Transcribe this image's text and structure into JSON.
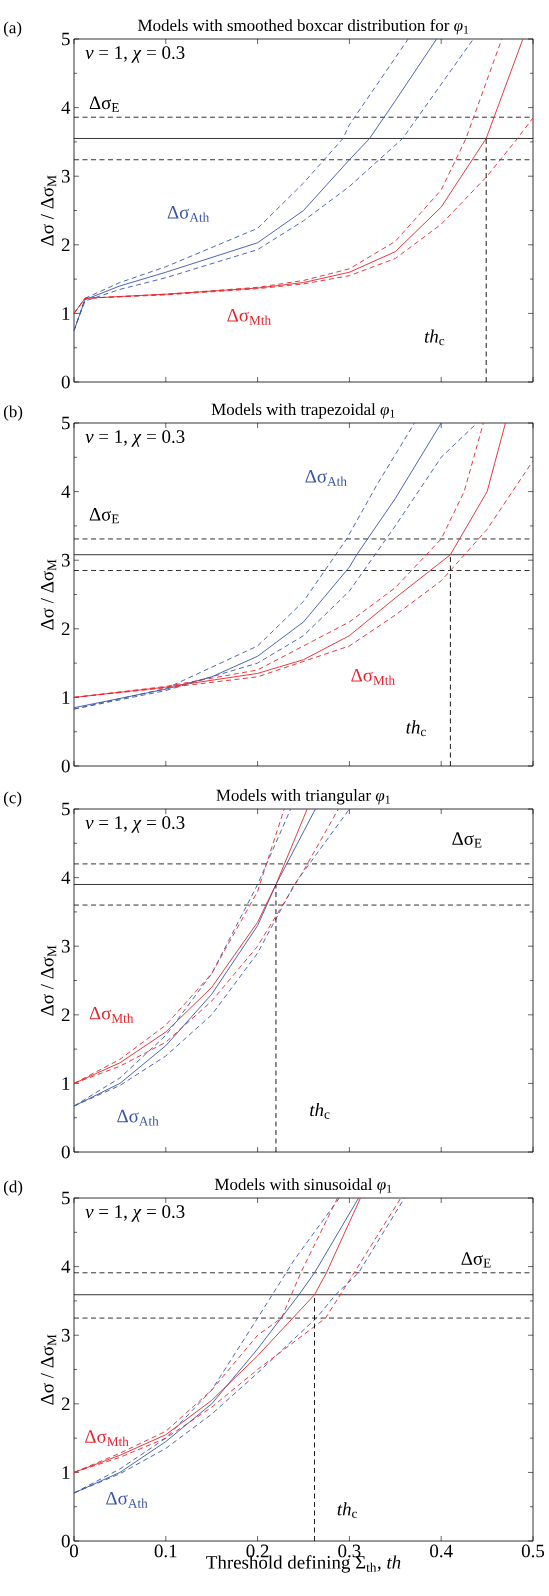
{
  "chart_data": [
    {
      "type": "line",
      "title": "Models with smoothed boxcar distribution for *φ*$_{1}$",
      "ylabel": "Δσ / Δσ$_{M}$",
      "xlim": [
        0,
        0.5
      ],
      "ylim": [
        0,
        5
      ],
      "xticks": [
        0,
        0.1,
        0.2,
        0.3,
        0.4,
        0.5
      ],
      "yticks": [
        0,
        1,
        2,
        3,
        4,
        5
      ],
      "tick_labels": "y",
      "series": [
        {
          "type": "line",
          "color": "#3a55a8",
          "line_style": "solid",
          "x": [
            0,
            0.012,
            0.05,
            0.1,
            0.2,
            0.25,
            0.3,
            0.322,
            0.35,
            0.395
          ],
          "values": [
            0.75,
            1.2,
            1.4,
            1.6,
            2.03,
            2.5,
            3.24,
            3.55,
            4.1,
            5
          ]
        },
        {
          "type": "line",
          "color": "#3a55a8",
          "line_style": "dashed",
          "x": [
            0,
            0.012,
            0.05,
            0.1,
            0.2,
            0.25,
            0.293,
            0.3,
            0.364
          ],
          "values": [
            0.75,
            1.22,
            1.45,
            1.68,
            2.24,
            2.9,
            3.55,
            3.75,
            5
          ]
        },
        {
          "type": "line",
          "color": "#3a55a8",
          "line_style": "dashed",
          "x": [
            0,
            0.012,
            0.05,
            0.1,
            0.2,
            0.25,
            0.3,
            0.358,
            0.435
          ],
          "values": [
            0.75,
            1.18,
            1.35,
            1.52,
            1.93,
            2.35,
            2.85,
            3.55,
            5
          ]
        },
        {
          "type": "line",
          "color": "#e8242c",
          "line_style": "solid",
          "x": [
            0,
            0.012,
            0.1,
            0.2,
            0.25,
            0.3,
            0.35,
            0.4,
            0.449,
            0.489
          ],
          "values": [
            1.0,
            1.22,
            1.28,
            1.37,
            1.45,
            1.6,
            1.9,
            2.55,
            3.55,
            5
          ]
        },
        {
          "type": "line",
          "color": "#e8242c",
          "line_style": "dashed",
          "x": [
            0,
            0.012,
            0.1,
            0.2,
            0.25,
            0.3,
            0.35,
            0.4,
            0.427,
            0.466
          ],
          "values": [
            1.0,
            1.22,
            1.28,
            1.38,
            1.48,
            1.65,
            2.05,
            2.8,
            3.55,
            5
          ]
        },
        {
          "type": "line",
          "color": "#e8242c",
          "line_style": "dashed",
          "x": [
            0,
            0.012,
            0.1,
            0.2,
            0.25,
            0.3,
            0.35,
            0.4,
            0.45,
            0.483,
            0.5
          ],
          "values": [
            1.0,
            1.22,
            1.27,
            1.36,
            1.43,
            1.55,
            1.8,
            2.3,
            3.0,
            3.55,
            3.85
          ]
        },
        {
          "type": "line",
          "color": "#000000",
          "line_style": "dashed",
          "x": [
            0.449,
            0.449
          ],
          "values": [
            0,
            3.55
          ]
        }
      ],
      "ref_lines": [
        {
          "axis": "y",
          "value": 3.55,
          "color": "#000000",
          "line_style": "solid"
        },
        {
          "axis": "y",
          "value": 3.86,
          "color": "#000000",
          "line_style": "dashed"
        },
        {
          "axis": "y",
          "value": 3.24,
          "color": "#000000",
          "line_style": "dashed"
        }
      ],
      "annotations": [
        "(a)",
        "*ν* = 1, *χ* = 0.3",
        "Δσ$_{E}$",
        "Δσ$_{Ath}$",
        "Δσ$_{Mth}$",
        "*th*$_{c}$"
      ]
    },
    {
      "type": "line",
      "title": "Models with trapezoidal *φ*$_{1}$",
      "ylabel": "Δσ / Δσ$_{M}$",
      "xlim": [
        0,
        0.5
      ],
      "ylim": [
        0,
        5
      ],
      "xticks": [
        0,
        0.1,
        0.2,
        0.3,
        0.4,
        0.5
      ],
      "yticks": [
        0,
        1,
        2,
        3,
        4,
        5
      ],
      "tick_labels": "y",
      "series": [
        {
          "type": "line",
          "color": "#3a55a8",
          "line_style": "solid",
          "x": [
            0,
            0.1,
            0.15,
            0.2,
            0.25,
            0.3,
            0.308,
            0.35,
            0.4
          ],
          "values": [
            0.85,
            1.12,
            1.3,
            1.6,
            2.1,
            2.9,
            3.08,
            3.9,
            5
          ]
        },
        {
          "type": "line",
          "color": "#3a55a8",
          "line_style": "dashed",
          "x": [
            0,
            0.1,
            0.2,
            0.25,
            0.297,
            0.33,
            0.371
          ],
          "values": [
            0.83,
            1.13,
            1.75,
            2.4,
            3.31,
            4.1,
            5
          ]
        },
        {
          "type": "line",
          "color": "#3a55a8",
          "line_style": "dashed",
          "x": [
            0,
            0.1,
            0.2,
            0.25,
            0.3,
            0.35,
            0.4,
            0.439
          ],
          "values": [
            0.83,
            1.1,
            1.5,
            1.9,
            2.55,
            3.5,
            4.5,
            5
          ]
        },
        {
          "type": "line",
          "color": "#e8242c",
          "line_style": "solid",
          "x": [
            0,
            0.1,
            0.2,
            0.25,
            0.3,
            0.35,
            0.41,
            0.45,
            0.47
          ],
          "values": [
            1.0,
            1.15,
            1.35,
            1.55,
            1.9,
            2.45,
            3.08,
            4.0,
            5
          ]
        },
        {
          "type": "line",
          "color": "#e8242c",
          "line_style": "dashed",
          "x": [
            0,
            0.1,
            0.2,
            0.3,
            0.35,
            0.4,
            0.425,
            0.446
          ],
          "values": [
            1.0,
            1.16,
            1.4,
            2.1,
            2.6,
            3.31,
            4.0,
            5
          ]
        },
        {
          "type": "line",
          "color": "#e8242c",
          "line_style": "dashed",
          "x": [
            0,
            0.1,
            0.2,
            0.3,
            0.35,
            0.4,
            0.45,
            0.5
          ],
          "values": [
            1.0,
            1.14,
            1.3,
            1.75,
            2.2,
            2.7,
            3.45,
            4.45
          ]
        },
        {
          "type": "line",
          "color": "#000000",
          "line_style": "dashed",
          "x": [
            0.41,
            0.41
          ],
          "values": [
            0,
            3.08
          ]
        }
      ],
      "ref_lines": [
        {
          "axis": "y",
          "value": 3.08,
          "color": "#000000",
          "line_style": "solid"
        },
        {
          "axis": "y",
          "value": 3.31,
          "color": "#000000",
          "line_style": "dashed"
        },
        {
          "axis": "y",
          "value": 2.85,
          "color": "#000000",
          "line_style": "dashed"
        }
      ],
      "annotations": [
        "(b)",
        "*ν* = 1, *χ* = 0.3",
        "Δσ$_{E}$",
        "Δσ$_{Ath}$",
        "Δσ$_{Mth}$",
        "*th*$_{c}$"
      ]
    },
    {
      "type": "line",
      "title": "Models with triangular *φ*$_{1}$",
      "ylabel": "Δσ / Δσ$_{M}$",
      "xlim": [
        0,
        0.5
      ],
      "ylim": [
        0,
        5
      ],
      "xticks": [
        0,
        0.1,
        0.2,
        0.3,
        0.4,
        0.5
      ],
      "yticks": [
        0,
        1,
        2,
        3,
        4,
        5
      ],
      "tick_labels": "y",
      "series": [
        {
          "type": "line",
          "color": "#3a55a8",
          "line_style": "solid",
          "x": [
            0,
            0.05,
            0.1,
            0.15,
            0.2,
            0.22,
            0.263
          ],
          "values": [
            0.67,
            1.0,
            1.55,
            2.3,
            3.3,
            3.9,
            5
          ]
        },
        {
          "type": "line",
          "color": "#3a55a8",
          "line_style": "dashed",
          "x": [
            0,
            0.05,
            0.1,
            0.15,
            0.2,
            0.236
          ],
          "values": [
            0.67,
            1.08,
            1.7,
            2.6,
            3.9,
            5
          ]
        },
        {
          "type": "line",
          "color": "#3a55a8",
          "line_style": "dashed",
          "x": [
            0,
            0.05,
            0.1,
            0.15,
            0.2,
            0.24,
            0.3
          ],
          "values": [
            0.67,
            0.97,
            1.4,
            2.0,
            2.9,
            3.9,
            5
          ]
        },
        {
          "type": "line",
          "color": "#e8242c",
          "line_style": "solid",
          "x": [
            0,
            0.05,
            0.1,
            0.15,
            0.2,
            0.22,
            0.254
          ],
          "values": [
            1.0,
            1.3,
            1.75,
            2.4,
            3.35,
            3.9,
            5
          ]
        },
        {
          "type": "line",
          "color": "#e8242c",
          "line_style": "dashed",
          "x": [
            0,
            0.05,
            0.1,
            0.15,
            0.2,
            0.229
          ],
          "values": [
            1.0,
            1.35,
            1.85,
            2.6,
            3.8,
            5
          ]
        },
        {
          "type": "line",
          "color": "#e8242c",
          "line_style": "dashed",
          "x": [
            0,
            0.05,
            0.1,
            0.15,
            0.2,
            0.25,
            0.288
          ],
          "values": [
            1.0,
            1.25,
            1.6,
            2.2,
            3.0,
            4.1,
            5
          ]
        },
        {
          "type": "line",
          "color": "#000000",
          "line_style": "dashed",
          "x": [
            0.22,
            0.22
          ],
          "values": [
            0,
            3.9
          ]
        }
      ],
      "ref_lines": [
        {
          "axis": "y",
          "value": 3.9,
          "color": "#000000",
          "line_style": "solid"
        },
        {
          "axis": "y",
          "value": 4.2,
          "color": "#000000",
          "line_style": "dashed"
        },
        {
          "axis": "y",
          "value": 3.6,
          "color": "#000000",
          "line_style": "dashed"
        }
      ],
      "annotations": [
        "(c)",
        "*ν* = 1, *χ* = 0.3",
        "Δσ$_{E}$",
        "Δσ$_{Ath}$",
        "Δσ$_{Mth}$",
        "*th*$_{c}$"
      ]
    },
    {
      "type": "line",
      "title": "Models with sinusoidal *φ*$_{1}$",
      "xlabel": "Threshold defining Σ$_{th}$, *th*",
      "ylabel": "Δσ / Δσ$_{M}$",
      "xlim": [
        0,
        0.5
      ],
      "ylim": [
        0,
        5
      ],
      "xticks": [
        0,
        0.1,
        0.2,
        0.3,
        0.4,
        0.5
      ],
      "yticks": [
        0,
        1,
        2,
        3,
        4,
        5
      ],
      "series": [
        {
          "type": "line",
          "color": "#3a55a8",
          "line_style": "solid",
          "x": [
            0,
            0.05,
            0.1,
            0.15,
            0.2,
            0.245,
            0.262,
            0.31
          ],
          "values": [
            0.7,
            1.0,
            1.45,
            2.0,
            2.8,
            3.59,
            3.91,
            5
          ]
        },
        {
          "type": "line",
          "color": "#3a55a8",
          "line_style": "dashed",
          "x": [
            0,
            0.05,
            0.1,
            0.15,
            0.2,
            0.216,
            0.24,
            0.289
          ],
          "values": [
            0.7,
            1.05,
            1.5,
            2.2,
            3.25,
            3.59,
            4.1,
            5
          ]
        },
        {
          "type": "line",
          "color": "#3a55a8",
          "line_style": "dashed",
          "x": [
            0,
            0.05,
            0.1,
            0.15,
            0.2,
            0.264,
            0.285,
            0.31,
            0.36
          ],
          "values": [
            0.7,
            0.98,
            1.35,
            1.85,
            2.45,
            3.25,
            3.59,
            3.91,
            5
          ]
        },
        {
          "type": "line",
          "color": "#e8242c",
          "line_style": "solid",
          "x": [
            0,
            0.05,
            0.1,
            0.15,
            0.2,
            0.262,
            0.275,
            0.312
          ],
          "values": [
            1.0,
            1.25,
            1.55,
            2.05,
            2.7,
            3.59,
            3.91,
            5
          ]
        },
        {
          "type": "line",
          "color": "#e8242c",
          "line_style": "dashed",
          "x": [
            0,
            0.05,
            0.1,
            0.15,
            0.2,
            0.226,
            0.247,
            0.287
          ],
          "values": [
            1.0,
            1.28,
            1.6,
            2.2,
            3.0,
            3.25,
            3.91,
            5
          ]
        },
        {
          "type": "line",
          "color": "#e8242c",
          "line_style": "dashed",
          "x": [
            0,
            0.05,
            0.1,
            0.15,
            0.2,
            0.274,
            0.3,
            0.356
          ],
          "values": [
            1.0,
            1.22,
            1.5,
            1.95,
            2.5,
            3.25,
            3.8,
            5
          ]
        },
        {
          "type": "line",
          "color": "#000000",
          "line_style": "dashed",
          "x": [
            0.262,
            0.262
          ],
          "values": [
            0,
            3.59
          ]
        }
      ],
      "ref_lines": [
        {
          "axis": "y",
          "value": 3.59,
          "color": "#000000",
          "line_style": "solid"
        },
        {
          "axis": "y",
          "value": 3.91,
          "color": "#000000",
          "line_style": "dashed"
        },
        {
          "axis": "y",
          "value": 3.25,
          "color": "#000000",
          "line_style": "dashed"
        }
      ],
      "annotations": [
        "(d)",
        "*ν* = 1, *χ* = 0.3",
        "Δσ$_{E}$",
        "Δσ$_{Ath}$",
        "Δσ$_{Mth}$",
        "*th*$_{c}$"
      ]
    }
  ]
}
